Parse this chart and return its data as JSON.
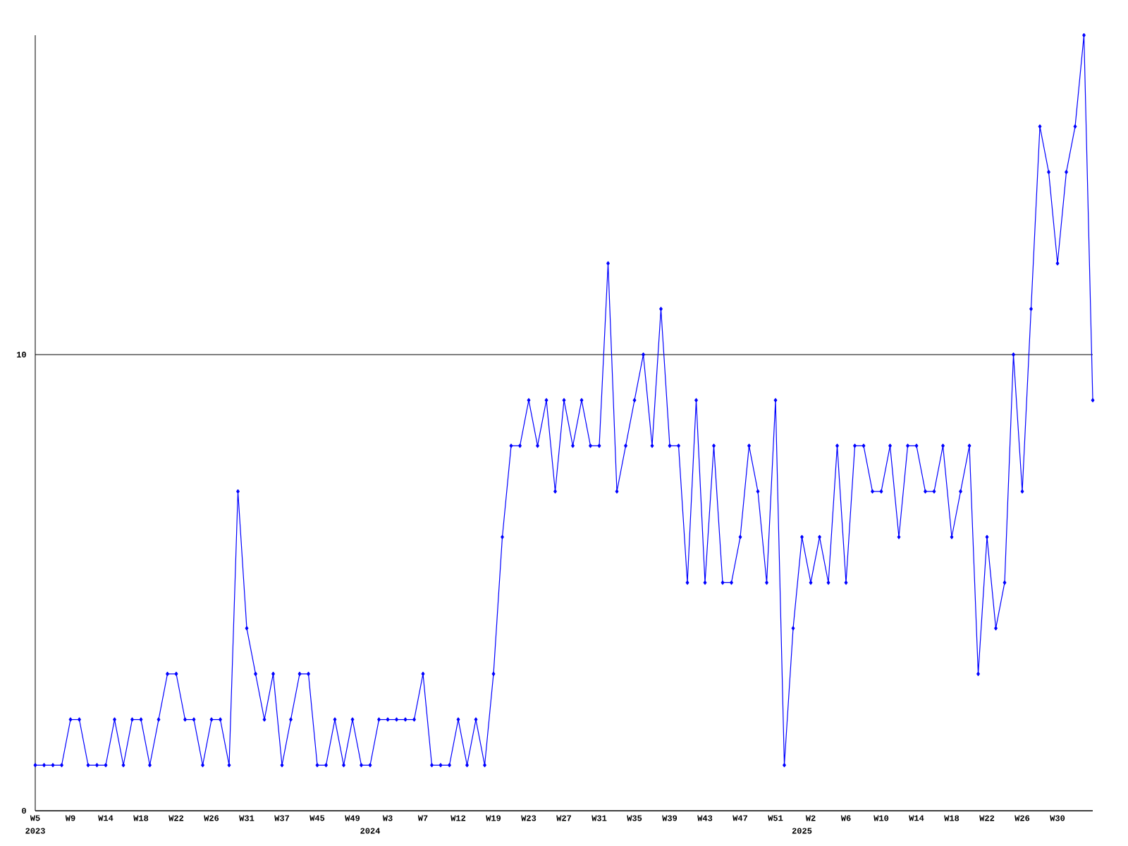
{
  "chart_data": {
    "type": "line",
    "categories": [
      "W5",
      null,
      null,
      null,
      "W9",
      null,
      null,
      null,
      "W14",
      null,
      null,
      null,
      "W18",
      null,
      null,
      null,
      "W22",
      null,
      null,
      null,
      "W26",
      null,
      null,
      null,
      "W31",
      null,
      null,
      null,
      "W37",
      null,
      null,
      null,
      "W45",
      null,
      null,
      null,
      "W49",
      null,
      null,
      null,
      "W3",
      null,
      null,
      null,
      "W7",
      null,
      null,
      null,
      "W12",
      null,
      null,
      null,
      "W19",
      null,
      null,
      null,
      "W23",
      null,
      null,
      null,
      "W27",
      null,
      null,
      null,
      "W31",
      null,
      null,
      null,
      "W35",
      null,
      null,
      null,
      "W39",
      null,
      null,
      null,
      "W43",
      null,
      null,
      null,
      "W47",
      null,
      null,
      null,
      "W51",
      null,
      null,
      null,
      "W2",
      null,
      null,
      null,
      "W6",
      null,
      null,
      null,
      "W10",
      null,
      null,
      null,
      "W14",
      null,
      null,
      null,
      "W18",
      null,
      null,
      null,
      "W22",
      null,
      null,
      null,
      "W26",
      null,
      null,
      null,
      "W30",
      null,
      null,
      null,
      null
    ],
    "values": [
      1,
      1,
      1,
      1,
      2,
      2,
      1,
      1,
      1,
      2,
      1,
      2,
      2,
      1,
      2,
      3,
      3,
      2,
      2,
      1,
      2,
      2,
      1,
      7,
      4,
      3,
      2,
      3,
      1,
      2,
      3,
      3,
      1,
      1,
      2,
      1,
      2,
      1,
      1,
      2,
      2,
      2,
      2,
      2,
      3,
      1,
      1,
      1,
      2,
      1,
      2,
      1,
      3,
      6,
      8,
      8,
      9,
      8,
      9,
      7,
      9,
      8,
      9,
      8,
      8,
      12,
      7,
      8,
      9,
      10,
      8,
      11,
      8,
      8,
      5,
      9,
      5,
      8,
      5,
      5,
      6,
      8,
      7,
      5,
      9,
      1,
      4,
      6,
      5,
      6,
      5,
      8,
      5,
      8,
      8,
      7,
      7,
      8,
      6,
      8,
      8,
      7,
      7,
      8,
      6,
      7,
      8,
      3,
      6,
      4,
      5,
      10,
      7,
      11,
      15,
      14,
      12,
      14,
      15,
      17,
      9
    ],
    "color": "#0000ff",
    "marker": "diamond",
    "line_style": "solid",
    "ylim": [
      0,
      17
    ],
    "yticks": [
      0,
      10
    ],
    "grid": "y",
    "annotations": [
      "2023",
      "2024",
      "2025"
    ]
  }
}
